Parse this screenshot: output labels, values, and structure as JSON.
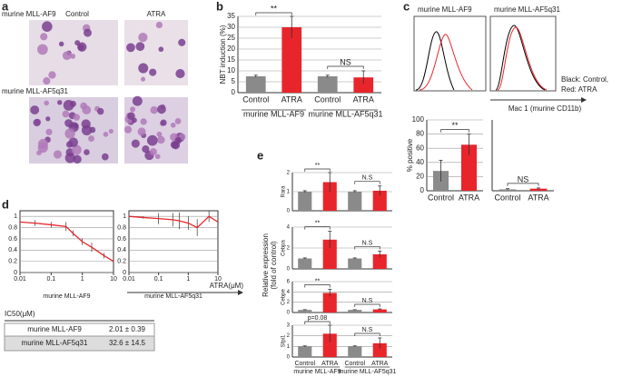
{
  "panel_labels": [
    "a",
    "b",
    "c",
    "d",
    "e"
  ],
  "panel_a": {
    "row1": "murine MLL-AF9",
    "col1": "Control",
    "col2": "ATRA",
    "row2": "murine MLL-AF5q31"
  },
  "panel_c": {
    "title1": "murine MLL-AF9",
    "title2": "murine MLL-AF5q31",
    "legend1": "Black: Control,",
    "legend2": "Red: ATRA",
    "xlabel": "Mac 1 (murine CD11b)"
  },
  "panel_d": {
    "xunit": "ATRA(μM)"
  },
  "panel_e": {
    "ylabel1": "Relative expression",
    "ylabel2": "(fold of control)"
  },
  "table": {
    "title": "IC50(μM)",
    "rows": [
      [
        "murine MLL-AF9",
        "2.01 ± 0.39"
      ],
      [
        "murine MLL-AF5q31",
        "32.6 ± 14.5"
      ]
    ]
  },
  "chart_data": [
    {
      "type": "bar",
      "ylabel": "NBT induction (%)",
      "categories": [
        "Control",
        "ATRA",
        "Control",
        "ATRA"
      ],
      "values": [
        7.5,
        30,
        7.5,
        7
      ],
      "errors": [
        0.5,
        5,
        0.5,
        3
      ],
      "colors": [
        "#8a8a8a",
        "#e8252b",
        "#8a8a8a",
        "#e8252b"
      ],
      "groups": [
        "murine MLL-AF9",
        "murine MLL-AF5q31"
      ],
      "annotations": [
        "**",
        "NS"
      ],
      "ylim": [
        0,
        35
      ],
      "yticks": [
        0,
        5,
        10,
        15,
        20,
        25,
        30,
        35
      ],
      "grid": true
    },
    {
      "type": "bar",
      "ylabel": "% positive",
      "categories": [
        "Control",
        "ATRA"
      ],
      "values": [
        28,
        65
      ],
      "errors": [
        15,
        15
      ],
      "colors": [
        "#8a8a8a",
        "#e8252b"
      ],
      "annotations": [
        "**"
      ],
      "ylim": [
        0,
        100
      ],
      "yticks": [
        0,
        20,
        40,
        60,
        80,
        100
      ],
      "grid": true
    },
    {
      "type": "bar",
      "categories": [
        "Control",
        "ATRA"
      ],
      "values": [
        2,
        3
      ],
      "errors": [
        1,
        1
      ],
      "colors": [
        "#8a8a8a",
        "#e8252b"
      ],
      "annotations": [
        "NS"
      ],
      "ylim": [
        0,
        100
      ],
      "grid": false
    },
    {
      "type": "line",
      "xlabel": "murine MLL-AF9",
      "x": [
        0.01,
        0.03,
        0.1,
        0.3,
        0.5,
        1,
        2,
        5,
        10
      ],
      "series": [
        {
          "values": [
            0.9,
            0.88,
            0.85,
            0.82,
            0.7,
            0.55,
            0.45,
            0.3,
            0.2
          ],
          "errors": [
            0.05,
            0.05,
            0.05,
            0.08,
            0.05,
            0.06,
            0.08,
            0.05,
            0.04
          ],
          "color": "#e8252b"
        }
      ],
      "log_x": true,
      "xlim": [
        0.01,
        10
      ],
      "xticks": [
        0.01,
        0.1,
        1,
        10
      ],
      "ylim": [
        0,
        1.1
      ],
      "yticks": [
        0,
        0.2,
        0.4,
        0.6,
        0.8,
        1
      ],
      "grid": true
    },
    {
      "type": "line",
      "xlabel": "murine MLL-AF5q31",
      "x": [
        0.01,
        0.03,
        0.1,
        0.3,
        0.5,
        1,
        2,
        5,
        10
      ],
      "series": [
        {
          "values": [
            1,
            0.98,
            0.96,
            0.94,
            0.92,
            0.88,
            0.8,
            1,
            0.9
          ],
          "errors": [
            0.02,
            0.02,
            0.1,
            0.12,
            0.15,
            0.12,
            0.15,
            0.1,
            0.08
          ],
          "color": "#e8252b"
        }
      ],
      "log_x": true,
      "xlim": [
        0.01,
        10
      ],
      "xticks": [
        0.01,
        0.1,
        1,
        10
      ],
      "ylim": [
        0,
        1.1
      ],
      "yticks": [
        0,
        0.2,
        0.4,
        0.6,
        0.8,
        1
      ],
      "grid": true
    },
    {
      "type": "bar",
      "ylabel": "Rara",
      "values": [
        1,
        1.5,
        1,
        1.05
      ],
      "errors": [
        0.05,
        0.5,
        0.05,
        0.25
      ],
      "colors": [
        "#8a8a8a",
        "#e8252b",
        "#8a8a8a",
        "#e8252b"
      ],
      "annotations": [
        "**",
        "N.S"
      ],
      "ylim": [
        0,
        2
      ],
      "yticks": [
        0,
        1,
        2
      ],
      "grid": true
    },
    {
      "type": "bar",
      "ylabel": "Cebpa",
      "values": [
        1,
        2.8,
        1,
        1.4
      ],
      "errors": [
        0.05,
        0.8,
        0.05,
        0.3
      ],
      "colors": [
        "#8a8a8a",
        "#e8252b",
        "#8a8a8a",
        "#e8252b"
      ],
      "annotations": [
        "**",
        "N.S"
      ],
      "ylim": [
        0,
        4
      ],
      "yticks": [
        0,
        2,
        4
      ],
      "grid": true
    },
    {
      "type": "bar",
      "ylabel": "Cebpe",
      "values": [
        0.5,
        3.8,
        0.5,
        0.6
      ],
      "errors": [
        0.05,
        0.7,
        0.05,
        0.1
      ],
      "colors": [
        "#8a8a8a",
        "#e8252b",
        "#8a8a8a",
        "#e8252b"
      ],
      "annotations": [
        "**",
        "N.S"
      ],
      "ylim": [
        0,
        6
      ],
      "yticks": [
        0,
        2,
        4,
        6
      ],
      "grid": true
    },
    {
      "type": "bar",
      "ylabel": "Sfpi1",
      "categories": [
        "Control",
        "ATRA",
        "Control",
        "ATRA"
      ],
      "values": [
        1,
        2.2,
        1,
        1.3
      ],
      "errors": [
        0.05,
        0.8,
        0.05,
        0.5
      ],
      "colors": [
        "#8a8a8a",
        "#e8252b",
        "#8a8a8a",
        "#e8252b"
      ],
      "groups": [
        "murine MLL-AF9",
        "murine MLL-AF5q31"
      ],
      "annotations": [
        "p=0.08",
        "N.S"
      ],
      "ylim": [
        0,
        3
      ],
      "yticks": [
        0,
        1,
        2,
        3
      ],
      "grid": true
    }
  ]
}
